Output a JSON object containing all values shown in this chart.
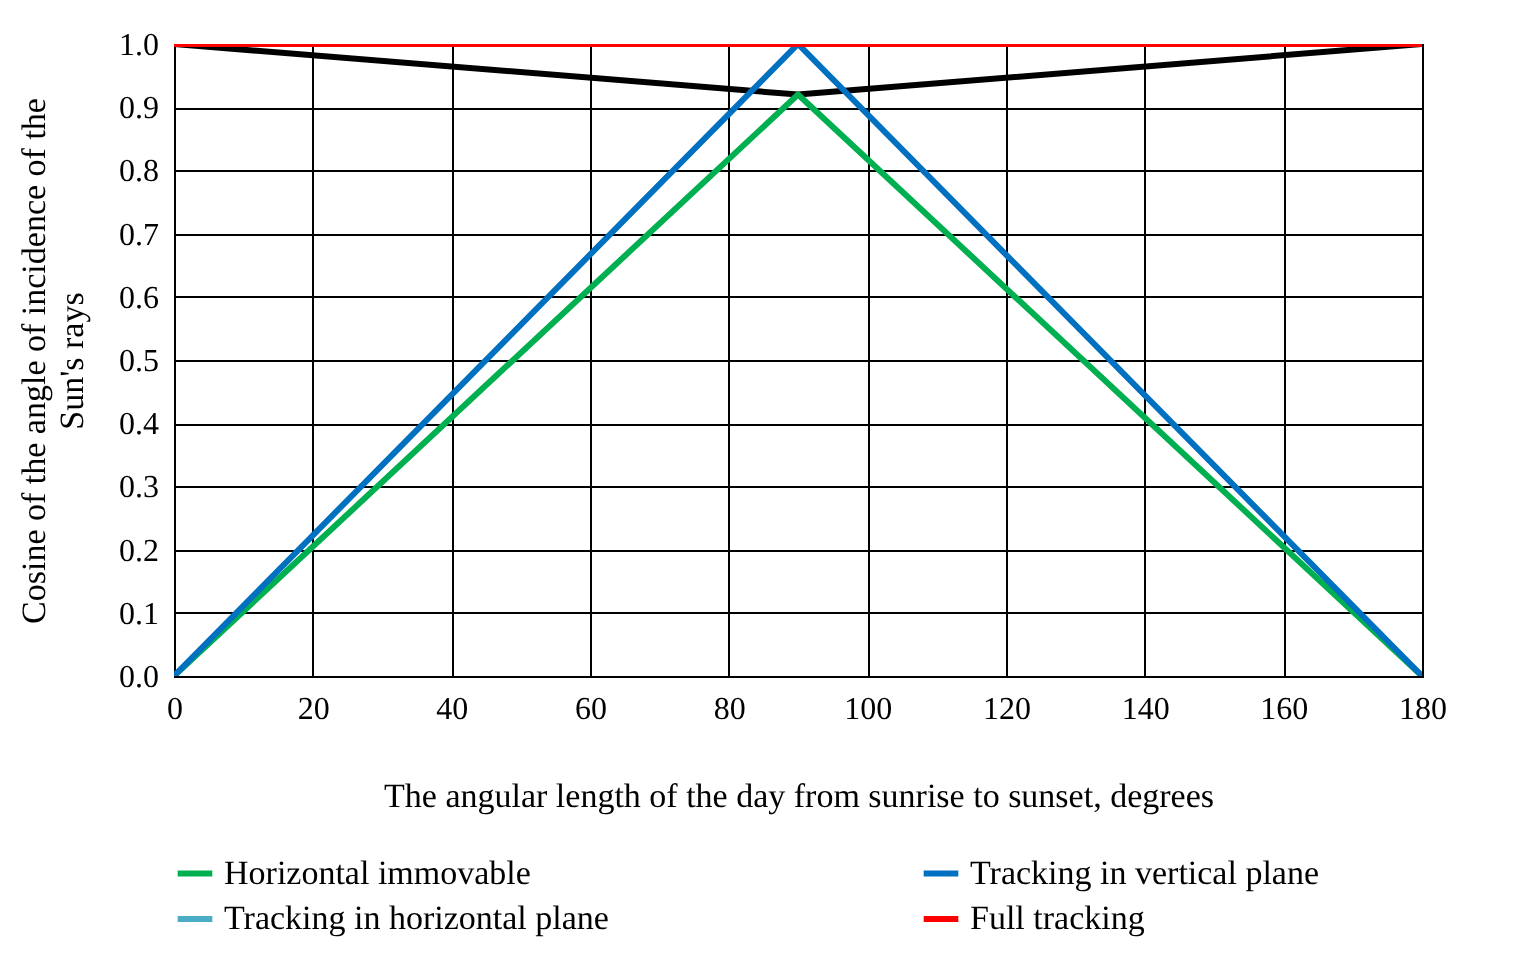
{
  "chart_data": {
    "type": "line",
    "xlabel": "The angular length of the day from sunrise to sunset, degrees",
    "ylabel": "Cosine of the angle of incidence of the Sun's rays",
    "series": [
      {
        "name": "Horizontal immovable",
        "color": "#00b050",
        "x": [
          0,
          90,
          180
        ],
        "values": [
          0,
          0.92,
          0
        ]
      },
      {
        "name": "Tracking in vertical plane",
        "color": "#0070c0",
        "x": [
          0,
          90,
          180
        ],
        "values": [
          0,
          1.0,
          0
        ]
      },
      {
        "name": "Tracking in horizontal plane",
        "color": "#4bacc6",
        "values": [
          null,
          null,
          null
        ]
      },
      {
        "name": "Full tracking",
        "color": "#ff0000",
        "x": [
          0,
          90,
          180
        ],
        "values": [
          1.0,
          1.0,
          1.0
        ]
      },
      {
        "color": "#000000",
        "x": [
          0,
          90,
          180
        ],
        "values": [
          1.0,
          0.92,
          1.0
        ]
      }
    ],
    "xlim": [
      0,
      180
    ],
    "xticks": [
      0,
      20,
      40,
      60,
      80,
      100,
      120,
      140,
      160,
      180
    ],
    "ylim": [
      0,
      1
    ],
    "yticks": [
      {
        "value": 0,
        "label": "0.0"
      },
      0.1,
      0.2,
      0.3,
      0.4,
      0.5,
      0.6,
      0.7,
      0.8,
      0.9,
      {
        "value": 1,
        "label": "1.0"
      }
    ],
    "grid": true,
    "legend": "bottom",
    "line_style": "solid",
    "marker": "none"
  }
}
